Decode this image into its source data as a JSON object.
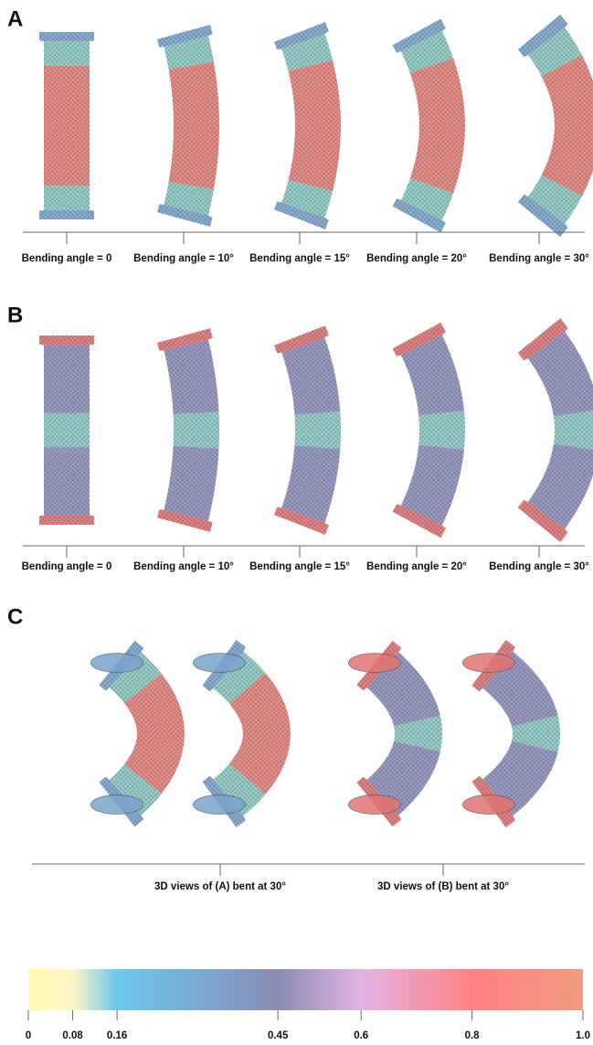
{
  "panels": [
    {
      "letter": "A",
      "labels": [
        "Bending angle = 0",
        "Bending angle = 10°",
        "Bending angle = 15°",
        "Bending angle = 20°",
        "Bending angle = 30°"
      ]
    },
    {
      "letter": "B",
      "labels": [
        "Bending angle = 0",
        "Bending angle = 10°",
        "Bending angle = 15°",
        "Bending angle = 20°",
        "Bending angle = 30°"
      ]
    },
    {
      "letter": "C",
      "labels": [
        "3D views of (A) bent at 30°",
        "3D views of (B) bent at 30°"
      ]
    }
  ],
  "colorbar": {
    "ticks": [
      0,
      0.08,
      0.16,
      0.45,
      0.6,
      0.8,
      {
        "value": 1,
        "label": "1.0"
      }
    ],
    "colors": [
      "#fffcb0",
      "#fff6c8",
      "#6cc8ee",
      "#8a8cb4",
      "#e2b4e4",
      "#ff8282",
      "#f09a80"
    ]
  }
}
